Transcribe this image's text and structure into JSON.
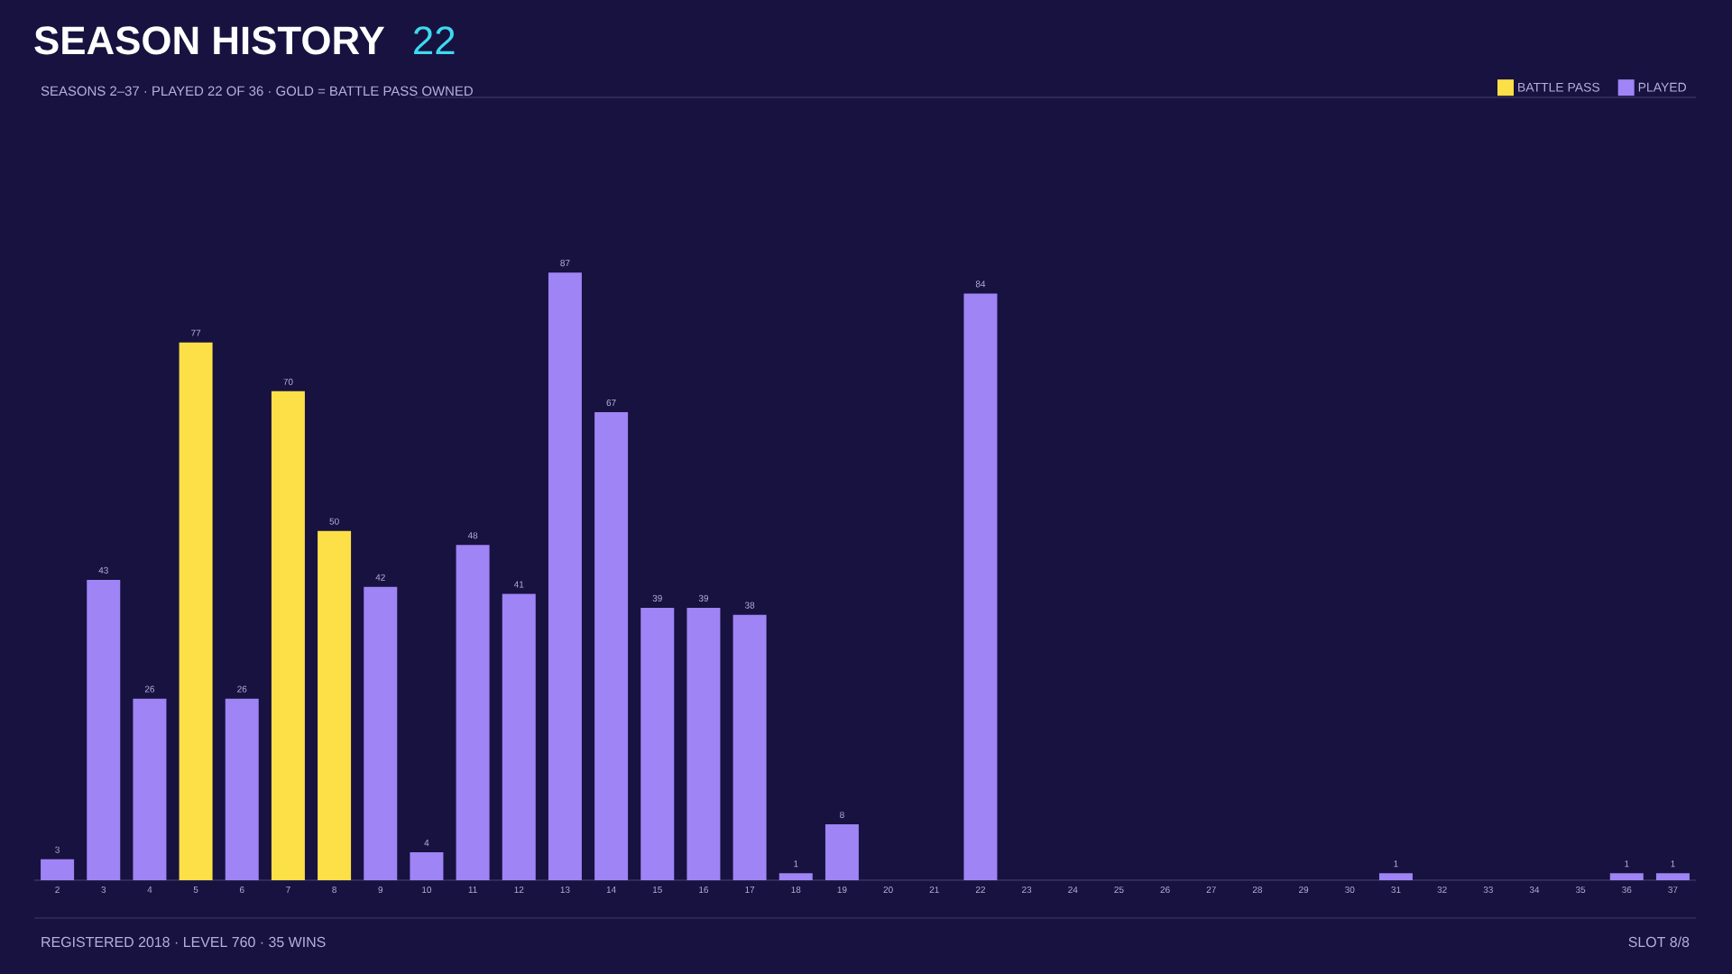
{
  "chart_data": {
    "type": "bar",
    "title": "SEASON HISTORY",
    "subtitle": "SEASONS 2–37 · PLAYED 22 OF 36 · GOLD = BATTLE PASS OWNED",
    "annotations": [
      "22",
      "REGISTERED 2018 · LEVEL 760 · 35 WINS",
      "SLOT 8/8"
    ],
    "categories": [
      "2",
      "3",
      "4",
      "5",
      "6",
      "7",
      "8",
      "9",
      "10",
      "11",
      "12",
      "13",
      "14",
      "15",
      "16",
      "17",
      "18",
      "19",
      "20",
      "21",
      "22",
      "23",
      "24",
      "25",
      "26",
      "27",
      "28",
      "29",
      "30",
      "31",
      "32",
      "33",
      "34",
      "35",
      "36",
      "37"
    ],
    "series": [
      {
        "name": "BATTLE PASS",
        "color": "#fde047",
        "values": [
          null,
          null,
          null,
          77,
          null,
          70,
          50,
          null,
          null,
          null,
          null,
          null,
          null,
          null,
          null,
          null,
          null,
          null,
          null,
          null,
          null,
          null,
          null,
          null,
          null,
          null,
          null,
          null,
          null,
          null,
          null,
          null,
          null,
          null,
          null,
          null
        ]
      },
      {
        "name": "PLAYED",
        "color": "#9f84f5",
        "values": [
          3,
          43,
          26,
          null,
          26,
          null,
          null,
          42,
          4,
          48,
          41,
          87,
          67,
          39,
          39,
          38,
          1,
          8,
          null,
          null,
          84,
          null,
          null,
          null,
          null,
          null,
          null,
          null,
          null,
          1,
          null,
          null,
          null,
          null,
          1,
          1
        ]
      }
    ],
    "tick_labels": "x",
    "data_labels": true,
    "legend": "top right"
  }
}
